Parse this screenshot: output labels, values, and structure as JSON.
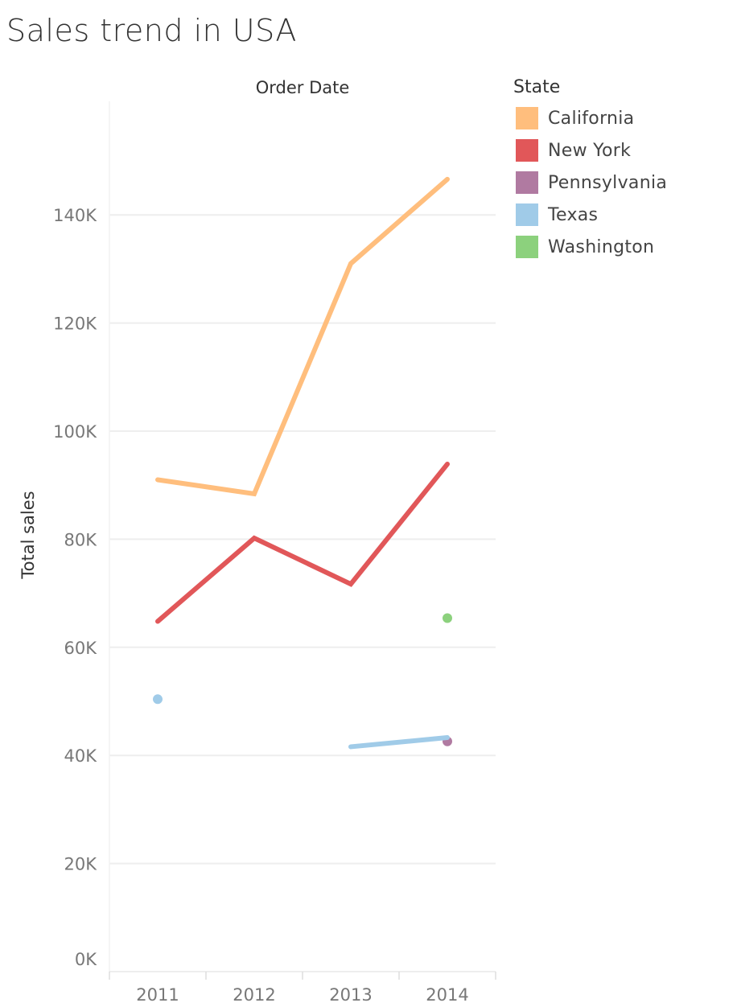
{
  "title": "Sales trend in USA",
  "chart_data": {
    "type": "line",
    "title": "Sales trend in USA",
    "xlabel": "Order Date",
    "ylabel": "Total sales",
    "categories": [
      "2011",
      "2012",
      "2013",
      "2014"
    ],
    "ylim": [
      0,
      150000
    ],
    "yticks": [
      0,
      20000,
      40000,
      60000,
      80000,
      100000,
      120000,
      140000
    ],
    "ytick_labels": [
      "0K",
      "20K",
      "40K",
      "60K",
      "80K",
      "100K",
      "120K",
      "140K"
    ],
    "grid": true,
    "legend": {
      "title": "State",
      "placement": "right"
    },
    "series": [
      {
        "name": "California",
        "color": "#FFBE7D",
        "values": [
          91000,
          88400,
          131000,
          146600
        ]
      },
      {
        "name": "New York",
        "color": "#E15759",
        "values": [
          64800,
          80200,
          71700,
          93900
        ]
      },
      {
        "name": "Pennsylvania",
        "color": "#B07AA1",
        "values": [
          null,
          null,
          null,
          42600
        ]
      },
      {
        "name": "Texas",
        "color": "#A0CBE8",
        "values": [
          50400,
          null,
          41600,
          43300
        ]
      },
      {
        "name": "Washington",
        "color": "#8CD17D",
        "values": [
          null,
          null,
          null,
          65400
        ]
      }
    ]
  }
}
